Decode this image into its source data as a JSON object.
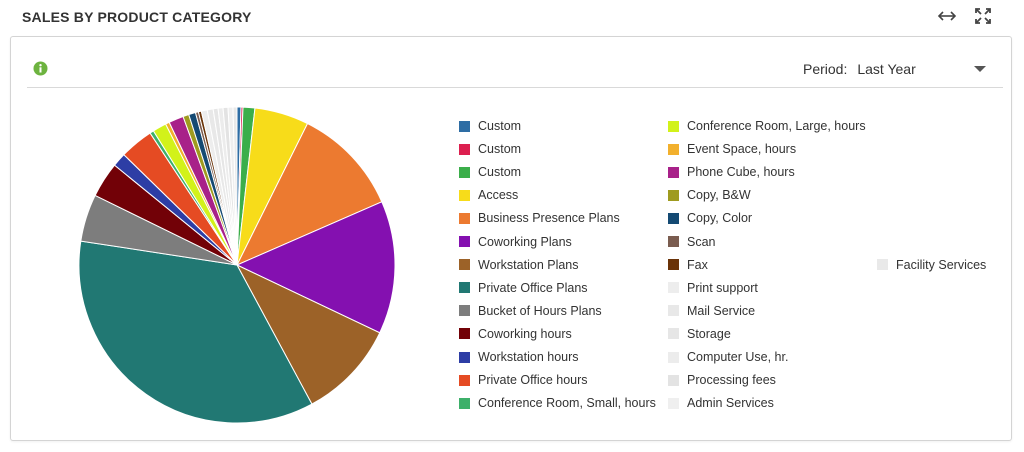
{
  "header": {
    "title": "SALES BY PRODUCT CATEGORY"
  },
  "toolbar": {
    "icons": [
      "resize-horizontal-icon",
      "expand-icon"
    ]
  },
  "filter": {
    "label": "Period:",
    "value": "Last Year"
  },
  "chart_data": {
    "type": "pie",
    "title": "",
    "start_angle_deg": 0,
    "direction": "clockwise",
    "slices": [
      {
        "label": "Custom",
        "value": 0.4,
        "color": "#2E6DA4"
      },
      {
        "label": "Custom",
        "value": 0.2,
        "color": "#DC1F4F"
      },
      {
        "label": "Custom",
        "value": 1.2,
        "color": "#3BAE4A"
      },
      {
        "label": "Access",
        "value": 5.5,
        "color": "#F7DC1A"
      },
      {
        "label": "Business Presence Plans",
        "value": 11.0,
        "color": "#EC7A30"
      },
      {
        "label": "Coworking Plans",
        "value": 13.5,
        "color": "#8410B0"
      },
      {
        "label": "Workstation Plans",
        "value": 10.0,
        "color": "#9C6228"
      },
      {
        "label": "Private Office Plans",
        "value": 35.0,
        "color": "#217873"
      },
      {
        "label": "Bucket of Hours Plans",
        "value": 4.8,
        "color": "#7D7D7D"
      },
      {
        "label": "Coworking hours",
        "value": 3.6,
        "color": "#720107"
      },
      {
        "label": "Workstation hours",
        "value": 1.4,
        "color": "#2D3DA5"
      },
      {
        "label": "Private Office hours",
        "value": 3.4,
        "color": "#E54B23"
      },
      {
        "label": "Conference Room, Small, hours",
        "value": 0.4,
        "color": "#3DB06A"
      },
      {
        "label": "Conference Room, Large, hours",
        "value": 1.4,
        "color": "#D2F21A"
      },
      {
        "label": "Event Space, hours",
        "value": 0.4,
        "color": "#F2B02D"
      },
      {
        "label": "Phone Cube, hours",
        "value": 1.5,
        "color": "#A82189"
      },
      {
        "label": "Copy, B&W",
        "value": 0.6,
        "color": "#9F9B1F"
      },
      {
        "label": "Copy, Color",
        "value": 0.7,
        "color": "#144A73"
      },
      {
        "label": "Scan",
        "value": 0.3,
        "color": "#7A5C4F"
      },
      {
        "label": "Fax",
        "value": 0.3,
        "color": "#6A3308"
      },
      {
        "label": "Print support",
        "value": 0.6,
        "color": "#EDEDED"
      },
      {
        "label": "Mail Service",
        "value": 0.6,
        "color": "#E8E8E8"
      },
      {
        "label": "Storage",
        "value": 0.5,
        "color": "#E6E6E6"
      },
      {
        "label": "Computer Use, hr.",
        "value": 0.5,
        "color": "#ECECEC"
      },
      {
        "label": "Processing fees",
        "value": 0.5,
        "color": "#E3E3E3"
      },
      {
        "label": "Admin Services",
        "value": 0.5,
        "color": "#EFEFEF"
      },
      {
        "label": "Facility Services",
        "value": 0.4,
        "color": "#E9E9E9"
      }
    ]
  }
}
